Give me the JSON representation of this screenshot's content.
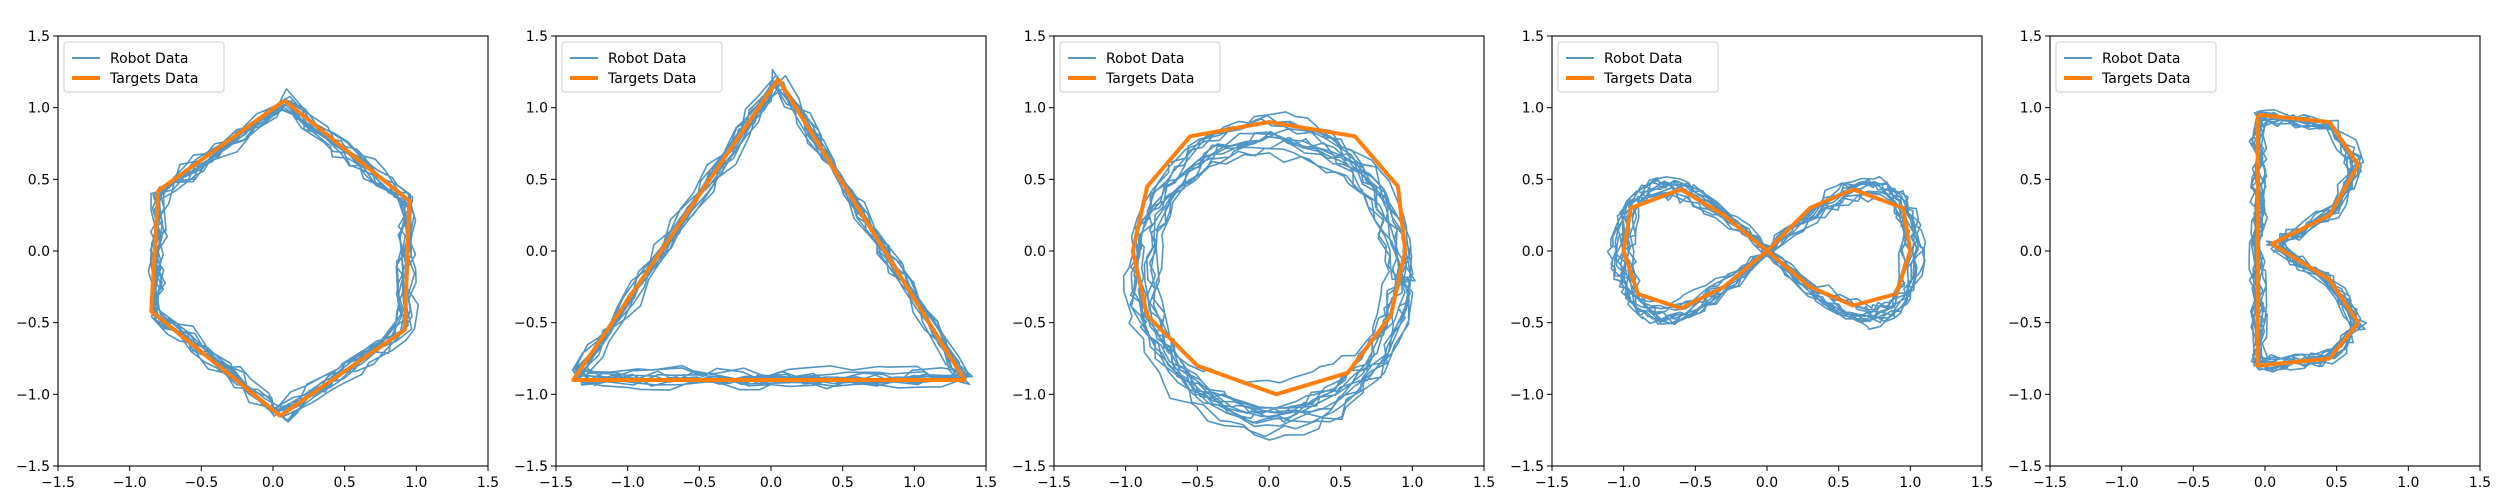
{
  "chart_data": [
    {
      "type": "line",
      "title": "",
      "xlabel": "",
      "ylabel": "",
      "xlim": [
        -1.5,
        1.5
      ],
      "ylim": [
        -1.5,
        1.5
      ],
      "xticks": [
        "−1.5",
        "−1.0",
        "−0.5",
        "0.0",
        "0.5",
        "1.0",
        "1.5"
      ],
      "yticks": [
        "−1.5",
        "−1.0",
        "−0.5",
        "0.0",
        "0.5",
        "1.0",
        "1.5"
      ],
      "grid": false,
      "legend": "upper-left",
      "series": [
        {
          "name": "Robot Data",
          "color": "#1f77b4",
          "style": "thin-noisy-repeated",
          "shape": "hexagon"
        },
        {
          "name": "Targets Data",
          "color": "#ff7f0e",
          "style": "thick",
          "x": [
            0.08,
            0.95,
            0.92,
            0.05,
            -0.85,
            -0.8,
            0.08
          ],
          "y": [
            1.05,
            0.35,
            -0.55,
            -1.15,
            -0.42,
            0.42,
            1.05
          ]
        }
      ]
    },
    {
      "type": "line",
      "title": "",
      "xlabel": "",
      "ylabel": "",
      "xlim": [
        -1.5,
        1.5
      ],
      "ylim": [
        -1.5,
        1.5
      ],
      "xticks": [
        "−1.5",
        "−1.0",
        "−0.5",
        "0.0",
        "0.5",
        "1.0",
        "1.5"
      ],
      "yticks": [
        "−1.5",
        "−1.0",
        "−0.5",
        "0.0",
        "0.5",
        "1.0",
        "1.5"
      ],
      "grid": false,
      "legend": "upper-left",
      "series": [
        {
          "name": "Robot Data",
          "color": "#1f77b4",
          "style": "thin-noisy-repeated",
          "shape": "triangle"
        },
        {
          "name": "Targets Data",
          "color": "#ff7f0e",
          "style": "thick",
          "x": [
            0.05,
            1.35,
            -1.38,
            0.05
          ],
          "y": [
            1.2,
            -0.9,
            -0.9,
            1.2
          ]
        }
      ]
    },
    {
      "type": "line",
      "title": "",
      "xlabel": "",
      "ylabel": "",
      "xlim": [
        -1.5,
        1.5
      ],
      "ylim": [
        -1.5,
        1.5
      ],
      "xticks": [
        "−1.5",
        "−1.0",
        "−0.5",
        "0.0",
        "0.5",
        "1.0",
        "1.5"
      ],
      "yticks": [
        "−1.5",
        "−1.0",
        "−0.5",
        "0.0",
        "0.5",
        "1.0",
        "1.5"
      ],
      "grid": false,
      "legend": "upper-left",
      "series": [
        {
          "name": "Robot Data",
          "color": "#1f77b4",
          "style": "thin-noisy-repeated",
          "shape": "circle"
        },
        {
          "name": "Targets Data",
          "color": "#ff7f0e",
          "style": "thick",
          "x": [
            0.0,
            0.6,
            0.9,
            0.95,
            0.85,
            0.55,
            0.05,
            -0.5,
            -0.85,
            -0.95,
            -0.85,
            -0.55,
            0.0
          ],
          "y": [
            0.9,
            0.8,
            0.45,
            0.0,
            -0.45,
            -0.85,
            -1.0,
            -0.8,
            -0.45,
            0.0,
            0.45,
            0.8,
            0.9
          ]
        }
      ]
    },
    {
      "type": "line",
      "title": "",
      "xlabel": "",
      "ylabel": "",
      "xlim": [
        -1.5,
        1.5
      ],
      "ylim": [
        -1.5,
        1.5
      ],
      "xticks": [
        "−1.5",
        "−1.0",
        "−0.5",
        "0.0",
        "0.5",
        "1.0",
        "1.5"
      ],
      "yticks": [
        "−1.5",
        "−1.0",
        "−0.5",
        "0.0",
        "0.5",
        "1.0",
        "1.5"
      ],
      "grid": false,
      "legend": "upper-left",
      "series": [
        {
          "name": "Robot Data",
          "color": "#1f77b4",
          "style": "thin-noisy-repeated",
          "shape": "figure-eight"
        },
        {
          "name": "Targets Data",
          "color": "#ff7f0e",
          "style": "thick",
          "x": [
            0.0,
            0.3,
            0.6,
            0.95,
            1.0,
            0.9,
            0.6,
            0.3,
            0.0,
            -0.3,
            -0.6,
            -0.95,
            -1.0,
            -0.9,
            -0.6,
            -0.3,
            0.0
          ],
          "y": [
            0.0,
            0.3,
            0.43,
            0.3,
            0.0,
            -0.3,
            -0.38,
            -0.25,
            0.0,
            0.25,
            0.43,
            0.3,
            0.0,
            -0.3,
            -0.4,
            -0.25,
            0.0
          ]
        }
      ]
    },
    {
      "type": "line",
      "title": "",
      "xlabel": "",
      "ylabel": "",
      "xlim": [
        -1.5,
        1.5
      ],
      "ylim": [
        -1.5,
        1.5
      ],
      "xticks": [
        "−1.5",
        "−1.0",
        "−0.5",
        "0.0",
        "0.5",
        "1.0",
        "1.5"
      ],
      "yticks": [
        "−1.5",
        "−1.0",
        "−0.5",
        "0.0",
        "0.5",
        "1.0",
        "1.5"
      ],
      "grid": false,
      "legend": "upper-left",
      "series": [
        {
          "name": "Robot Data",
          "color": "#1f77b4",
          "style": "thin-noisy-repeated",
          "shape": "letter-B"
        },
        {
          "name": "Targets Data",
          "color": "#ff7f0e",
          "style": "thick",
          "x": [
            -0.05,
            0.45,
            0.65,
            0.45,
            0.05,
            0.45,
            0.65,
            0.45,
            -0.05,
            -0.05
          ],
          "y": [
            0.95,
            0.9,
            0.6,
            0.25,
            0.05,
            -0.2,
            -0.5,
            -0.75,
            -0.8,
            0.95
          ]
        }
      ]
    }
  ]
}
